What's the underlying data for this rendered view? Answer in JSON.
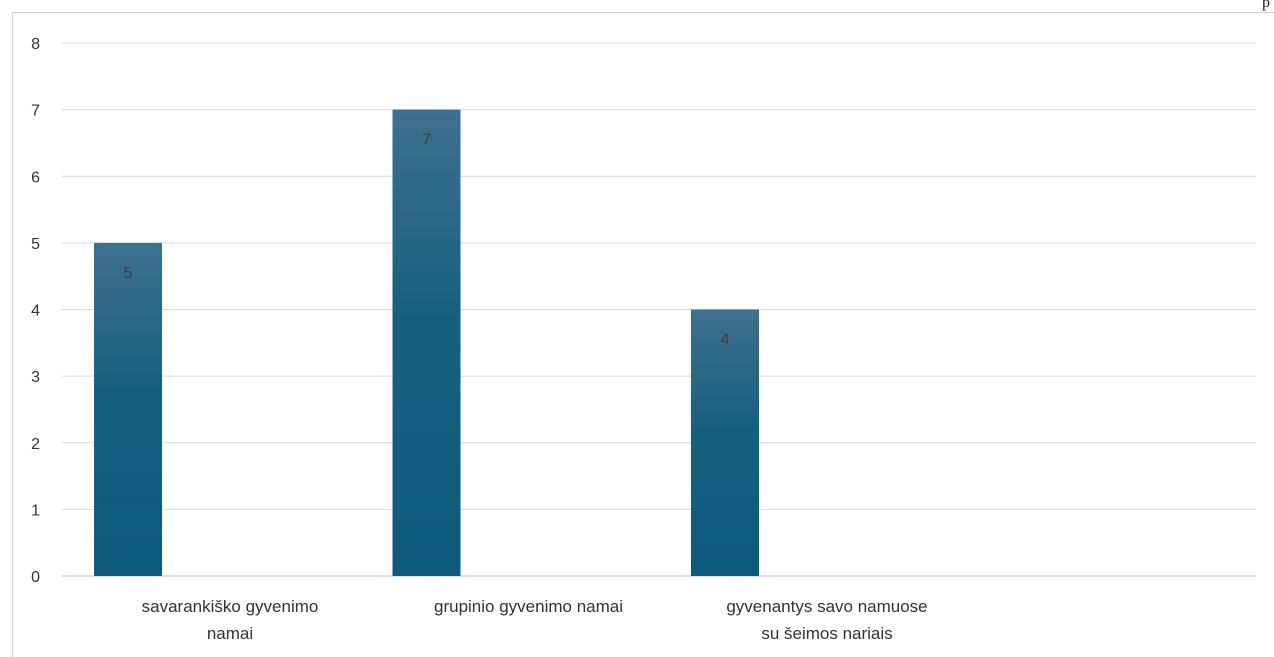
{
  "page": {
    "corner_label": "p"
  },
  "chart_data": {
    "type": "bar",
    "categories": [
      [
        "savarankiško gyvenimo",
        "namai"
      ],
      [
        "grupinio gyvenimo namai"
      ],
      [
        "gyvenantys savo namuose",
        "su šeimos nariais"
      ],
      [
        ""
      ]
    ],
    "series": [
      {
        "values": [
          5,
          7,
          4,
          null
        ]
      }
    ],
    "data_labels": [
      "5",
      "7",
      "4",
      ""
    ],
    "title": "",
    "xlabel": "",
    "ylabel": "",
    "ylim": [
      0,
      8
    ],
    "yticks": [
      0,
      1,
      2,
      3,
      4,
      5,
      6,
      7,
      8
    ],
    "grid": true,
    "legend": "none",
    "colors": {
      "bar_top": "#3f6f8f",
      "bar_bottom": "#0e5a7c",
      "grid": "#d9d9d9",
      "axis": "#bfbfbf",
      "text": "#404040",
      "label": "#333333"
    }
  }
}
